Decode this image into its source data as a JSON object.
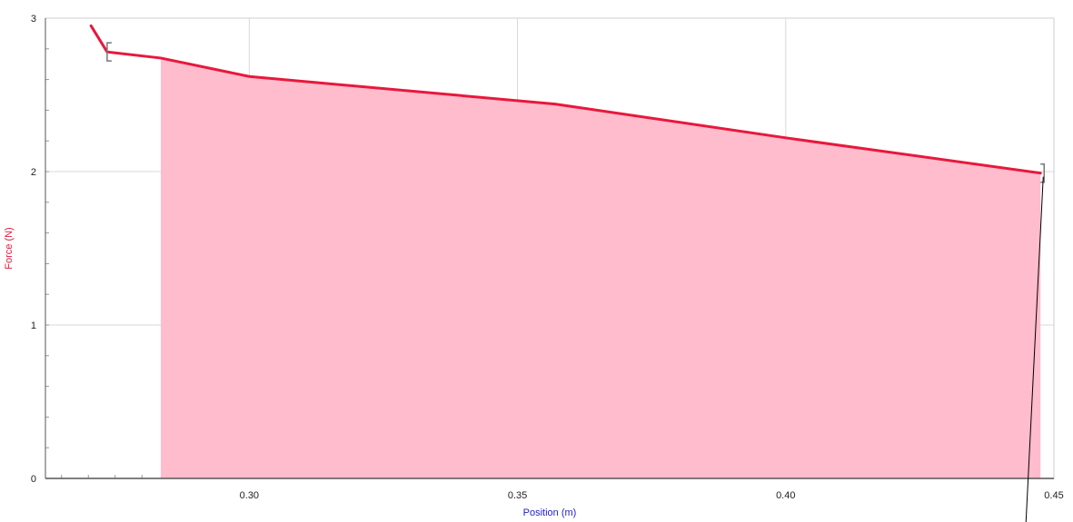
{
  "chart_data": {
    "type": "area",
    "xlabel": "Position (m)",
    "ylabel": "Force (N)",
    "xlim": [
      0.262,
      0.45
    ],
    "ylim": [
      0,
      3
    ],
    "x_ticks": [
      "0.30",
      "0.35",
      "0.40",
      "0.45"
    ],
    "y_ticks": [
      "0",
      "1",
      "2",
      "3"
    ],
    "grid": true,
    "series": [
      {
        "x": [
          0.2705,
          0.2735,
          0.2835,
          0.3,
          0.357,
          0.4,
          0.4475
        ],
        "y": [
          2.95,
          2.78,
          2.74,
          2.62,
          2.44,
          2.22,
          1.99
        ]
      }
    ],
    "shaded_region": {
      "x_start": 0.2835,
      "x_end": 0.4475
    },
    "selection_brackets": [
      0.2735,
      0.4475
    ],
    "colors": {
      "series": "#e8183c",
      "fill": "#ffbccc",
      "xlabel": "#2222cc",
      "ylabel": "#e8183c",
      "grid": "#d8d8d8",
      "minor_tick": "#999999",
      "bracket": "#777777",
      "axis": "#555555"
    }
  }
}
